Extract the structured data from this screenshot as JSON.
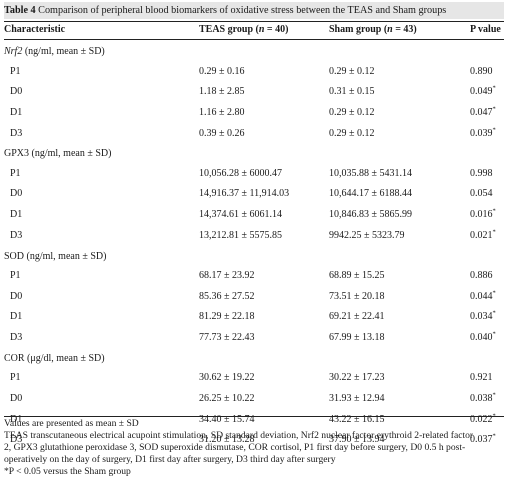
{
  "caption": {
    "label": "Table 4",
    "text": "Comparison of peripheral blood biomarkers of oxidative stress between the TEAS and Sham groups"
  },
  "header": {
    "col1": "Characteristic",
    "col2": "TEAS group (n = 40)",
    "col3": "Sham group (n = 43)",
    "col4": "P value"
  },
  "sections": [
    {
      "title": "Nrf2 (ng/ml, mean ± SD)",
      "rows": [
        {
          "label": "P1",
          "teas": "0.29 ± 0.16",
          "sham": "0.29 ± 0.12",
          "p": "0.890"
        },
        {
          "label": "D0",
          "teas": "1.18 ± 2.85",
          "sham": "0.31 ± 0.15",
          "p": "0.049*"
        },
        {
          "label": "D1",
          "teas": "1.16 ± 2.80",
          "sham": "0.29 ± 0.12",
          "p": "0.047*"
        },
        {
          "label": "D3",
          "teas": "0.39 ± 0.26",
          "sham": "0.29 ± 0.12",
          "p": "0.039*"
        }
      ]
    },
    {
      "title": "GPX3 (ng/ml, mean ± SD)",
      "rows": [
        {
          "label": "P1",
          "teas": "10,056.28 ± 6000.47",
          "sham": "10,035.88 ± 5431.14",
          "p": "0.998"
        },
        {
          "label": "D0",
          "teas": "14,916.37 ± 11,914.03",
          "sham": "10,644.17 ± 6188.44",
          "p": "0.054"
        },
        {
          "label": "D1",
          "teas": "14,374.61 ± 6061.14",
          "sham": "10,846.83 ± 5865.99",
          "p": "0.016*"
        },
        {
          "label": "D3",
          "teas": "13,212.81 ± 5575.85",
          "sham": "9942.25 ± 5323.79",
          "p": "0.021*"
        }
      ]
    },
    {
      "title": "SOD (ng/ml, mean ± SD)",
      "rows": [
        {
          "label": "P1",
          "teas": "68.17 ± 23.92",
          "sham": "68.89 ± 15.25",
          "p": "0.886"
        },
        {
          "label": "D0",
          "teas": "85.36 ± 27.52",
          "sham": "73.51 ± 20.18",
          "p": "0.044*"
        },
        {
          "label": "D1",
          "teas": "81.29 ± 22.18",
          "sham": "69.21 ± 22.41",
          "p": "0.034*"
        },
        {
          "label": "D3",
          "teas": "77.73 ± 22.43",
          "sham": "67.99 ± 13.18",
          "p": "0.040*"
        }
      ]
    },
    {
      "title": "COR (μg/dl, mean ± SD)",
      "rows": [
        {
          "label": "P1",
          "teas": "30.62 ± 19.22",
          "sham": "30.22 ± 17.23",
          "p": "0.921"
        },
        {
          "label": "D0",
          "teas": "26.25 ± 10.22",
          "sham": "31.93 ± 12.94",
          "p": "0.038*"
        },
        {
          "label": "D1",
          "teas": "34.40 ± 15.74",
          "sham": "43.22 ± 16.15",
          "p": "0.022*"
        },
        {
          "label": "D3",
          "teas": "31.20 ± 13.28",
          "sham": "37.90 ± 13.94",
          "p": "0.037*"
        }
      ]
    }
  ],
  "notes": {
    "line1": "Values are presented as mean ± SD",
    "line2": "TEAS transcutaneous electrical acupoint stimulation, SD standard deviation, Nrf2 nuclear factor erythroid 2-related factor",
    "line3": "2, GPX3 glutathione peroxidase 3, SOD superoxide dismutase, COR cortisol, P1 first day before surgery, D0 0.5 h post-",
    "line4": "operatively on the day of surgery, D1 first day after surgery, D3 third day after surgery",
    "line5": "*P < 0.05 versus the Sham group"
  }
}
